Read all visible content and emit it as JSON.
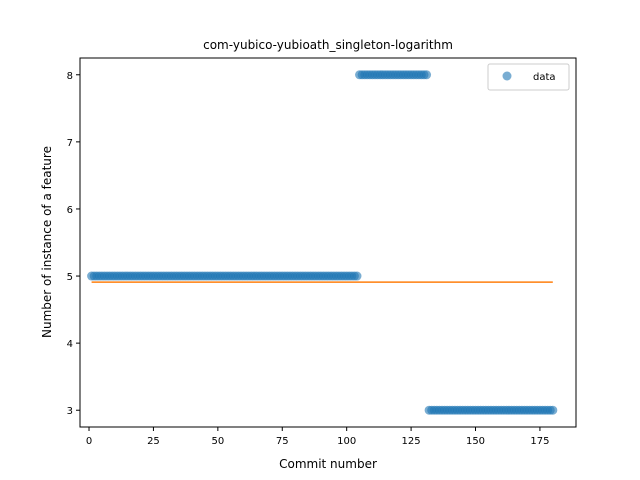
{
  "chart_data": {
    "type": "scatter",
    "title": "com-yubico-yubioath_singleton-logarithm",
    "xlabel": "Commit number",
    "ylabel": "Number of instance of a feature",
    "xlim": [
      -3.5,
      189
    ],
    "ylim": [
      2.75,
      8.25
    ],
    "xticks": [
      0,
      25,
      50,
      75,
      100,
      125,
      150,
      175
    ],
    "yticks": [
      3,
      4,
      5,
      6,
      7,
      8
    ],
    "grid": false,
    "legend_position": "top-right",
    "colors": {
      "data": "#1f77b4",
      "fit": "#ff7f0e"
    },
    "series": [
      {
        "name": "data",
        "kind": "points",
        "segments": [
          {
            "x_start": 1,
            "x_end": 104,
            "y": 5
          },
          {
            "x_start": 105,
            "x_end": 131,
            "y": 8
          },
          {
            "x_start": 132,
            "x_end": 180,
            "y": 3
          }
        ]
      },
      {
        "kind": "line",
        "x": [
          1,
          180
        ],
        "y": [
          4.91,
          4.91
        ]
      }
    ]
  }
}
